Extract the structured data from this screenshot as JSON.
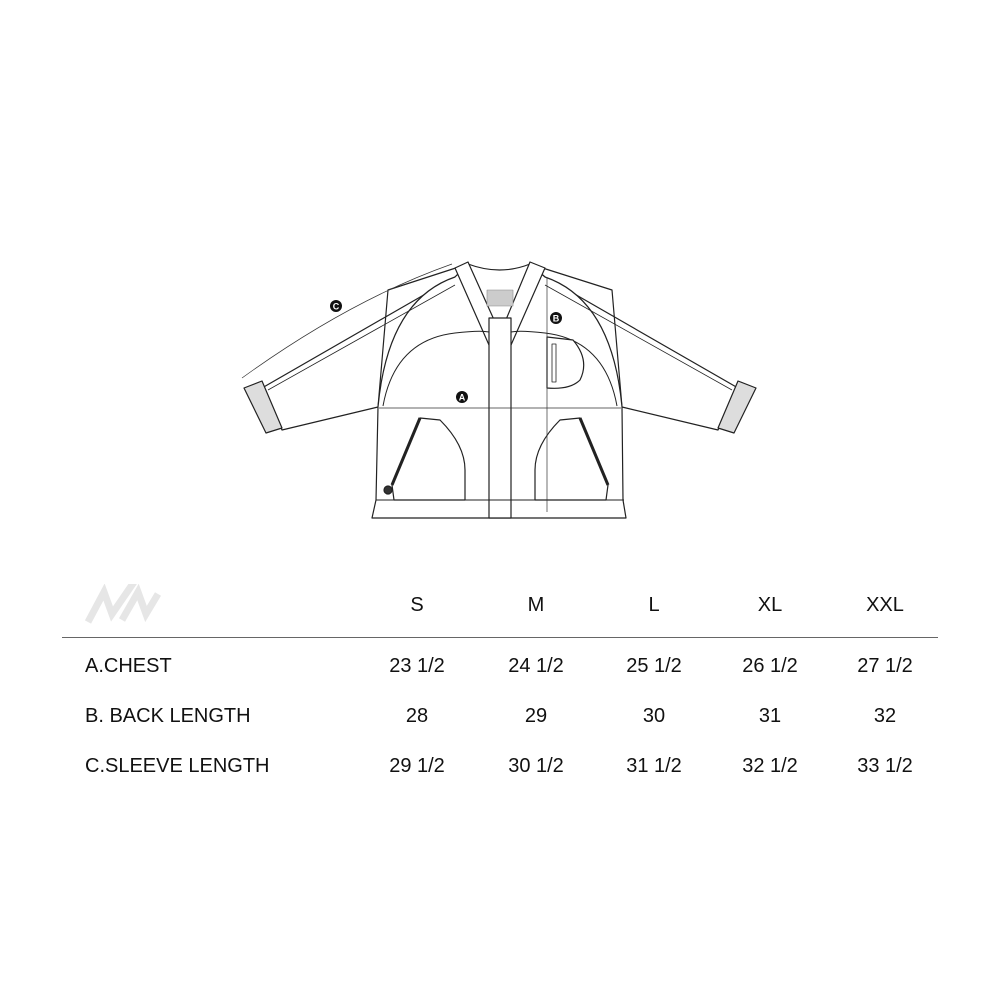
{
  "diagram": {
    "markers": [
      "A",
      "B",
      "C"
    ]
  },
  "brand_logo": "N/N",
  "size_chart": {
    "sizes": [
      "S",
      "M",
      "L",
      "XL",
      "XXL"
    ],
    "rows": [
      {
        "label": "A.CHEST",
        "values": [
          "23 1/2",
          "24 1/2",
          "25 1/2",
          "26 1/2",
          "27 1/2"
        ]
      },
      {
        "label": "B. BACK LENGTH",
        "values": [
          "28",
          "29",
          "30",
          "31",
          "32"
        ]
      },
      {
        "label": "C.SLEEVE LENGTH",
        "values": [
          "29 1/2",
          "30 1/2",
          "31 1/2",
          "32 1/2",
          "33 1/2"
        ]
      }
    ]
  }
}
